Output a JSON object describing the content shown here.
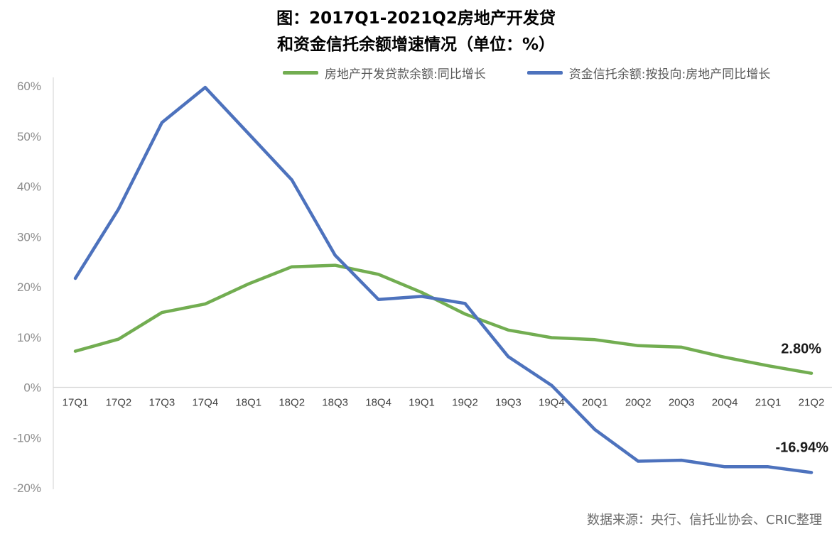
{
  "title": {
    "line1": "图：2017Q1-2021Q2房地产开发贷",
    "line2": "和资金信托余额增速情况（单位：%）"
  },
  "source_text": "数据来源：央行、信托业协会、CRIC整理",
  "colors": {
    "series1": "#72ad51",
    "series2": "#4d72bd",
    "axis": "#d9d9d9",
    "tick_text": "#8c8c8c",
    "cat_text": "#404040"
  },
  "chart_data": {
    "type": "line",
    "title": "图：2017Q1-2021Q2房地产开发贷和资金信托余额增速情况（单位：%）",
    "categories": [
      "17Q1",
      "17Q2",
      "17Q3",
      "17Q4",
      "18Q1",
      "18Q2",
      "18Q3",
      "18Q4",
      "19Q1",
      "19Q2",
      "19Q3",
      "19Q4",
      "20Q1",
      "20Q2",
      "20Q3",
      "20Q4",
      "21Q1",
      "21Q2"
    ],
    "y_ticks": [
      "60%",
      "50%",
      "40%",
      "30%",
      "20%",
      "10%",
      "0%",
      "-10%",
      "-20%"
    ],
    "ylim": [
      -20,
      60
    ],
    "grid": false,
    "legend_position": "top-right",
    "series": [
      {
        "name": "房地产开发贷款余额:同比增长",
        "values": [
          7.2,
          9.6,
          14.9,
          16.6,
          20.6,
          24.0,
          24.3,
          22.5,
          18.9,
          14.6,
          11.4,
          9.9,
          9.5,
          8.3,
          8.0,
          6.0,
          4.3,
          2.8
        ]
      },
      {
        "name": "资金信托余额:按投向:房地产同比增长",
        "values": [
          21.7,
          35.5,
          52.7,
          59.7,
          50.5,
          41.3,
          26.3,
          17.5,
          18.1,
          16.7,
          6.1,
          0.4,
          -8.4,
          -14.7,
          -14.5,
          -15.8,
          -15.8,
          -16.94
        ]
      }
    ],
    "annotations": [
      "2.80%",
      "-16.94%"
    ]
  }
}
